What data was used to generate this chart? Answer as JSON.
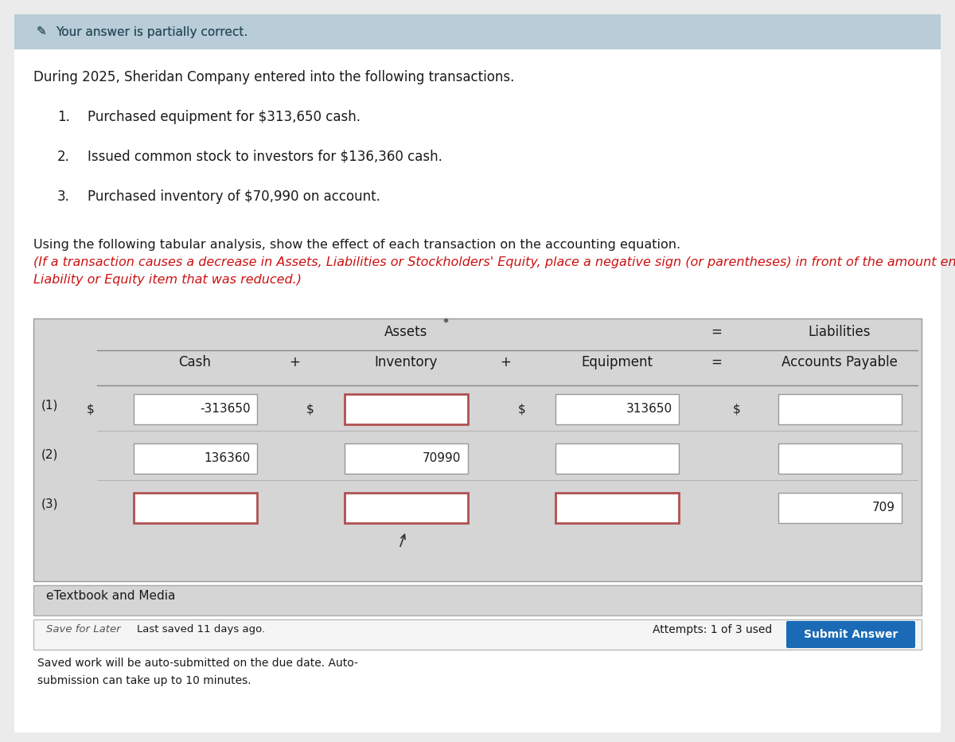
{
  "page_bg": "#ebebeb",
  "content_bg": "#f7f7f7",
  "banner_color": "#b8cdd8",
  "banner_text": "Your answer is partially correct.",
  "banner_text_color": "#2e4f5e",
  "intro_text": "During 2025, Sheridan Company entered into the following transactions.",
  "transactions": [
    "Purchased equipment for $313,650 cash.",
    "Issued common stock to investors for $136,360 cash.",
    "Purchased inventory of $70,990 on account."
  ],
  "instr_normal": "Using the following tabular analysis, show the effect of each transaction on the accounting equation. ",
  "instr_red_line1": "(If a transaction causes a decrease in Assets, Liabilities or Stockholders' Equity, place a negative sign (or parentheses) in front of the amount entered for the particular Asset,",
  "instr_red_line2": "Liability or Equity item that was reduced.)",
  "table_header_assets": "Assets",
  "table_header_liabilities": "Liabilities",
  "col_cash": "Cash",
  "col_inventory": "Inventory",
  "col_equipment": "Equipment",
  "col_ap": "Accounts Payable",
  "row_labels": [
    "(1)",
    "(2)",
    "(3)"
  ],
  "rows": [
    {
      "cash": "-313650",
      "inv": "",
      "equip": "313650",
      "ap": "",
      "inv_err": true,
      "cash_err": false,
      "equip_err": false,
      "ap_err": false,
      "has_dollar": true
    },
    {
      "cash": "136360",
      "inv": "70990",
      "equip": "",
      "ap": "",
      "inv_err": false,
      "cash_err": false,
      "equip_err": false,
      "ap_err": false,
      "has_dollar": false
    },
    {
      "cash": "",
      "inv": "",
      "equip": "",
      "ap": "709",
      "inv_err": true,
      "cash_err": true,
      "equip_err": true,
      "ap_err": false,
      "has_dollar": false
    }
  ],
  "etextbook_text": "eTextbook and Media",
  "save_text": "Save for Later",
  "last_saved_text": "Last saved 11 days ago.",
  "auto_line1": "Saved work will be auto-submitted on the due date. Auto-",
  "auto_line2": "submission can take up to 10 minutes.",
  "attempts_text": "Attempts: 1 of 3 used",
  "submit_btn_text": "Submit Answer",
  "submit_btn_color": "#1a6ab5",
  "table_bg": "#d8d8d8",
  "row_bg": "#e8e8e8",
  "input_border_error": "#b05050",
  "input_border_normal": "#999999",
  "text_color": "#1a1a1a",
  "red_text_color": "#cc1111",
  "gray_text": "#555555"
}
